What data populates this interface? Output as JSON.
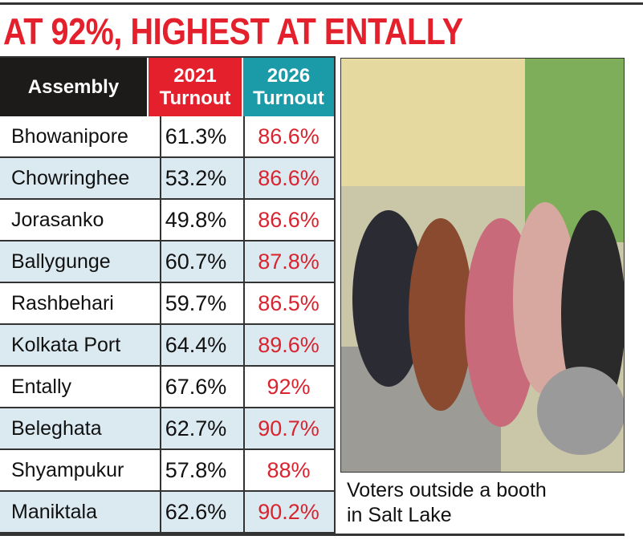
{
  "title": "AT 92%, HIGHEST AT ENTALLY",
  "table": {
    "header": [
      [
        "Assembly"
      ],
      [
        "2021",
        "Turnout"
      ],
      [
        "2026",
        "Turnout"
      ]
    ],
    "rows": [
      [
        "Bhowanipore",
        "61.3%",
        "86.6%"
      ],
      [
        "Chowringhee",
        "53.2%",
        "86.6%"
      ],
      [
        "Jorasanko",
        "49.8%",
        "86.6%"
      ],
      [
        "Ballygunge",
        "60.7%",
        "87.8%"
      ],
      [
        "Rashbehari",
        "59.7%",
        "86.5%"
      ],
      [
        "Kolkata Port",
        "64.4%",
        "89.6%"
      ],
      [
        "Entally",
        "67.6%",
        "92%"
      ],
      [
        "Beleghata",
        "62.7%",
        "90.7%"
      ],
      [
        "Shyampukur",
        "57.8%",
        "88%"
      ],
      [
        "Maniktala",
        "62.6%",
        "90.2%"
      ]
    ]
  },
  "photo": {
    "caption": [
      "Voters outside a booth",
      "in Salt Lake"
    ]
  }
}
